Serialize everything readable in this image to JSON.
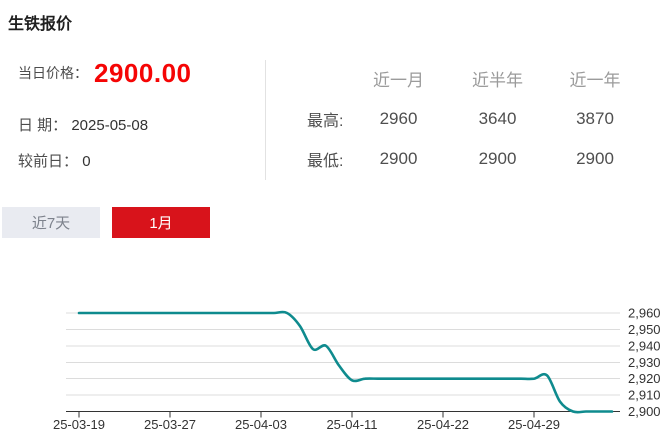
{
  "page": {
    "title": "生铁报价"
  },
  "summary": {
    "price_label": "当日价格：",
    "price_value": "2900.00",
    "date_label": "日 期：",
    "date_value": "2025-05-08",
    "prev_label": "较前日：",
    "prev_value": "0"
  },
  "stats": {
    "col_headers": [
      "近一月",
      "近半年",
      "近一年"
    ],
    "rows": [
      {
        "label": "最高:",
        "values": [
          "2960",
          "3640",
          "3870"
        ]
      },
      {
        "label": "最低:",
        "values": [
          "2900",
          "2900",
          "2900"
        ]
      }
    ]
  },
  "tabs": [
    {
      "label": "近7天",
      "active": false
    },
    {
      "label": "1月",
      "active": true
    }
  ],
  "colors": {
    "price_red": "#f50505",
    "tab_red": "#d8131b",
    "line_teal": "#0f8b8e",
    "grid_gray": "#dcdcdc",
    "axis_dark": "#333333"
  },
  "chart_data": {
    "type": "line",
    "title": "",
    "xlabel": "",
    "ylabel": "",
    "x_tick_labels": [
      "25-03-19",
      "25-03-27",
      "25-04-03",
      "25-04-11",
      "25-04-22",
      "25-04-29"
    ],
    "tick_every": 7,
    "y_tick_labels": [
      "2,960",
      "2,950",
      "2,940",
      "2,930",
      "2,920",
      "2,910",
      "2,900"
    ],
    "ylim": [
      2900,
      2960
    ],
    "grid": true,
    "legend": "none",
    "smooth": true,
    "line_color": "#0f8b8e",
    "values": [
      2960,
      2960,
      2960,
      2960,
      2960,
      2960,
      2960,
      2960,
      2960,
      2960,
      2960,
      2960,
      2960,
      2960,
      2960,
      2960,
      2960,
      2952,
      2938,
      2940,
      2928,
      2919,
      2920,
      2920,
      2920,
      2920,
      2920,
      2920,
      2920,
      2920,
      2920,
      2920,
      2920,
      2920,
      2920,
      2920,
      2922,
      2906,
      2900,
      2900,
      2900,
      2900
    ]
  }
}
